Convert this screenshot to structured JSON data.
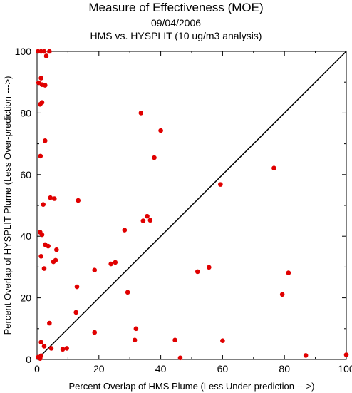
{
  "chart_data": {
    "type": "scatter",
    "title": "Measure of Effectiveness (MOE)",
    "subtitle_date": "09/04/2006",
    "subtitle_analysis": "HMS vs. HYSPLIT  (10 ug/m3 analysis)",
    "xlabel": "Percent Overlap of HMS Plume (Less Under-prediction --->)",
    "ylabel": "Percent Overlap of HYSPLIT Plume (Less Over-prediction --->)",
    "xlim": [
      0,
      100
    ],
    "ylim": [
      0,
      100
    ],
    "xticks": [
      "0",
      "20",
      "40",
      "60",
      "80",
      "100"
    ],
    "yticks": [
      "0",
      "20",
      "40",
      "60",
      "80",
      "100"
    ],
    "grid": false,
    "diagonal_line": true,
    "colors": {
      "points": "#e00000",
      "line": "#000000",
      "axes": "#000000"
    },
    "points": [
      [
        0.3,
        100
      ],
      [
        1.3,
        100
      ],
      [
        2.3,
        100
      ],
      [
        4.0,
        100
      ],
      [
        3.0,
        98.5
      ],
      [
        0.5,
        89.8
      ],
      [
        1.3,
        91.3
      ],
      [
        1.6,
        89.2
      ],
      [
        2.6,
        89.0
      ],
      [
        1.0,
        82.8
      ],
      [
        1.6,
        83.4
      ],
      [
        2.6,
        71.0
      ],
      [
        1.1,
        66.0
      ],
      [
        4.3,
        52.5
      ],
      [
        5.6,
        52.2
      ],
      [
        2.0,
        50.3
      ],
      [
        13.3,
        51.6
      ],
      [
        1.0,
        41.3
      ],
      [
        1.6,
        40.5
      ],
      [
        2.6,
        37.3
      ],
      [
        3.6,
        36.8
      ],
      [
        6.3,
        35.6
      ],
      [
        1.3,
        33.5
      ],
      [
        6.0,
        32.2
      ],
      [
        5.3,
        31.7
      ],
      [
        2.3,
        29.5
      ],
      [
        4.0,
        11.8
      ],
      [
        1.3,
        5.6
      ],
      [
        4.6,
        3.6
      ],
      [
        2.3,
        4.3
      ],
      [
        0.3,
        0.7
      ],
      [
        0.8,
        0.5
      ],
      [
        1.3,
        1.2
      ],
      [
        1.0,
        0.3
      ],
      [
        8.3,
        3.3
      ],
      [
        9.6,
        3.6
      ],
      [
        18.6,
        8.8
      ],
      [
        12.6,
        15.3
      ],
      [
        12.9,
        23.6
      ],
      [
        18.6,
        29.0
      ],
      [
        23.9,
        31.0
      ],
      [
        25.3,
        31.5
      ],
      [
        28.3,
        42.0
      ],
      [
        29.3,
        21.8
      ],
      [
        31.6,
        6.3
      ],
      [
        32.0,
        10.0
      ],
      [
        33.6,
        80.0
      ],
      [
        34.3,
        45.0
      ],
      [
        35.6,
        46.5
      ],
      [
        36.6,
        45.2
      ],
      [
        37.9,
        65.5
      ],
      [
        40.0,
        74.3
      ],
      [
        44.6,
        6.3
      ],
      [
        46.3,
        0.5
      ],
      [
        51.9,
        28.5
      ],
      [
        55.6,
        29.9
      ],
      [
        59.3,
        56.8
      ],
      [
        60.0,
        6.1
      ],
      [
        76.6,
        62.1
      ],
      [
        79.3,
        21.1
      ],
      [
        81.3,
        28.1
      ],
      [
        86.9,
        1.3
      ],
      [
        100,
        1.5
      ]
    ]
  }
}
